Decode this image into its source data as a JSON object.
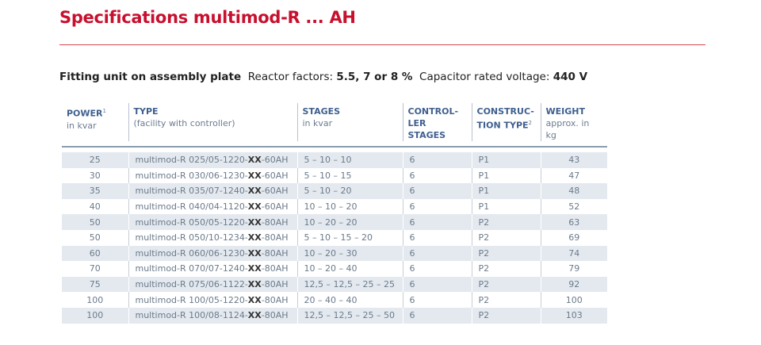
{
  "header": {
    "title": "Specifications multimod-R ... AH"
  },
  "subtitle": {
    "lead": "Fitting unit on assembly plate",
    "factors_label": "Reactor factors: ",
    "factors_value": "5.5, 7 or 8 %",
    "voltage_label": "Capacitor rated voltage: ",
    "voltage_value": "440 V"
  },
  "table": {
    "columns": [
      {
        "title": [
          "POWER"
        ],
        "sup": "1",
        "note": "in kvar"
      },
      {
        "title": [
          "TYPE"
        ],
        "note": "(facility with controller)"
      },
      {
        "title": [
          "STAGES"
        ],
        "note": "in kvar"
      },
      {
        "title": [
          "CONTROL-",
          "LER STAGES"
        ]
      },
      {
        "title": [
          "CONSTRUC-",
          "TION TYPE"
        ],
        "sup": "2"
      },
      {
        "title": [
          "WEIGHT"
        ],
        "note": "approx. in kg"
      }
    ],
    "rows": [
      {
        "power": "25",
        "type": [
          "multimod-R 025/05-1220-",
          "XX",
          "-60AH"
        ],
        "stages": "5 – 10 – 10",
        "control": "6",
        "construction": "P1",
        "weight": "43"
      },
      {
        "power": "30",
        "type": [
          "multimod-R 030/06-1230-",
          "XX",
          "-60AH"
        ],
        "stages": "5 – 10 – 15",
        "control": "6",
        "construction": "P1",
        "weight": "47"
      },
      {
        "power": "35",
        "type": [
          "multimod-R 035/07-1240-",
          "XX",
          "-60AH"
        ],
        "stages": "5 – 10 – 20",
        "control": "6",
        "construction": "P1",
        "weight": "48"
      },
      {
        "power": "40",
        "type": [
          "multimod-R 040/04-1120-",
          "XX",
          "-60AH"
        ],
        "stages": "10 – 10 – 20",
        "control": "6",
        "construction": "P1",
        "weight": "52"
      },
      {
        "power": "50",
        "type": [
          "multimod-R 050/05-1220-",
          "XX",
          "-80AH"
        ],
        "stages": "10 – 20 – 20",
        "control": "6",
        "construction": "P2",
        "weight": "63"
      },
      {
        "power": "50",
        "type": [
          "multimod-R 050/10-1234-",
          "XX",
          "-80AH"
        ],
        "stages": "5 – 10 – 15 – 20",
        "control": "6",
        "construction": "P2",
        "weight": "69"
      },
      {
        "power": "60",
        "type": [
          "multimod-R 060/06-1230-",
          "XX",
          "-80AH"
        ],
        "stages": "10 – 20 – 30",
        "control": "6",
        "construction": "P2",
        "weight": "74"
      },
      {
        "power": "70",
        "type": [
          "multimod-R 070/07-1240-",
          "XX",
          "-80AH"
        ],
        "stages": "10 – 20 – 40",
        "control": "6",
        "construction": "P2",
        "weight": "79"
      },
      {
        "power": "75",
        "type": [
          "multimod-R 075/06-1122-",
          "XX",
          "-80AH"
        ],
        "stages": "12,5 – 12,5 – 25 – 25",
        "control": "6",
        "construction": "P2",
        "weight": "92"
      },
      {
        "power": "100",
        "type": [
          "multimod-R 100/05-1220-",
          "XX",
          "-80AH"
        ],
        "stages": "20 – 40 – 40",
        "control": "6",
        "construction": "P2",
        "weight": "100"
      },
      {
        "power": "100",
        "type": [
          "multimod-R 100/08-1124-",
          "XX",
          "-80AH"
        ],
        "stages": "12,5 – 12,5 – 25 – 50",
        "control": "6",
        "construction": "P2",
        "weight": "103"
      }
    ]
  }
}
